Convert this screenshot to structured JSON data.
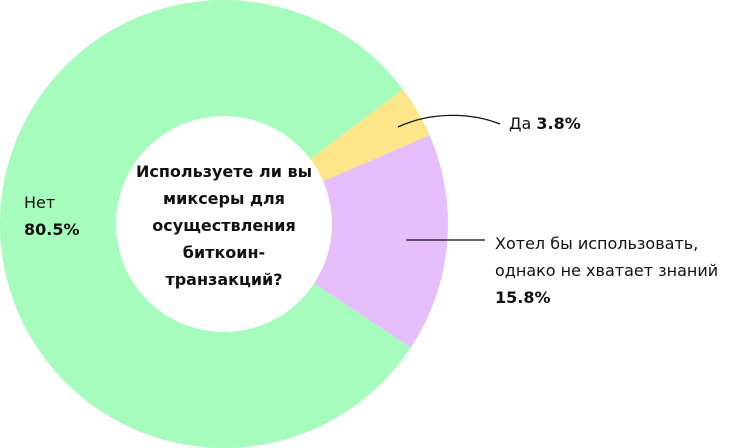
{
  "chart_data": {
    "type": "donut",
    "title": "Используете ли вы миксеры для осуществления биткоин-транзакций?",
    "categories": [
      "Да",
      "Хотел бы использовать, однако не хватает знаний",
      "Нет"
    ],
    "values": [
      3.8,
      15.8,
      80.5
    ],
    "value_labels": [
      "3.8%",
      "15.8%",
      "80.5%"
    ],
    "colors": [
      "#fde58a",
      "#e6befc",
      "#a6fcbd"
    ]
  }
}
